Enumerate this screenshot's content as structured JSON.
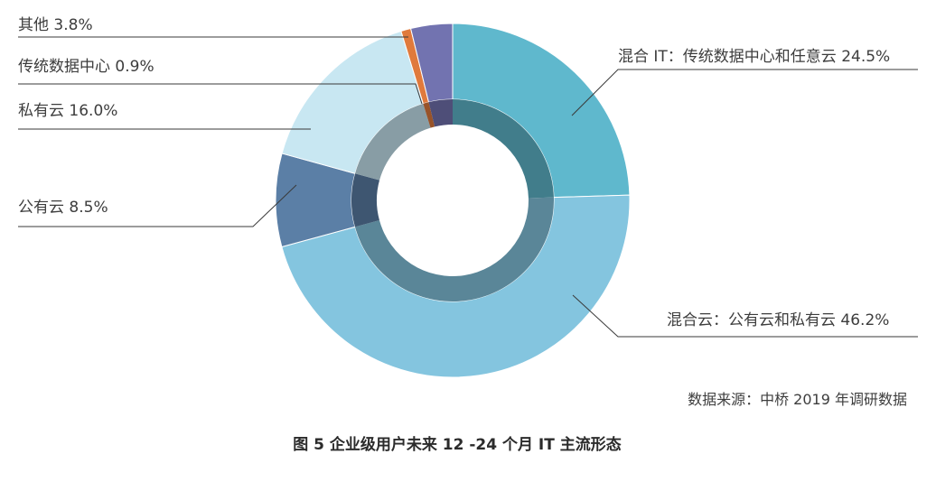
{
  "chart_data": {
    "type": "pie",
    "style": "donut",
    "title": "",
    "categories": [
      "混合 IT：传统数据中心和任意云",
      "混合云：公有云和私有云",
      "公有云",
      "私有云",
      "传统数据中心",
      "其他"
    ],
    "values": [
      24.5,
      46.2,
      8.5,
      16.0,
      0.9,
      3.8
    ],
    "unit": "%",
    "labels": [
      {
        "name": "混合 IT：传统数据中心和任意云",
        "value": "24.5%"
      },
      {
        "name": "混合云：公有云和私有云",
        "value": "46.2%"
      },
      {
        "name": "公有云",
        "value": "8.5%"
      },
      {
        "name": "私有云",
        "value": "16.0%"
      },
      {
        "name": "传统数据中心",
        "value": "0.9%"
      },
      {
        "name": "其他",
        "value": "3.8%"
      }
    ],
    "colors": [
      "#5fb8cd",
      "#84c5df",
      "#5b7fa6",
      "#c8e7f2",
      "#e07a3c",
      "#7273b0"
    ],
    "legend": "none",
    "source": "数据来源：中桥 2019 年调研数据",
    "caption": "图 5   企业级用户未来 12 -24 个月 IT 主流形态"
  }
}
